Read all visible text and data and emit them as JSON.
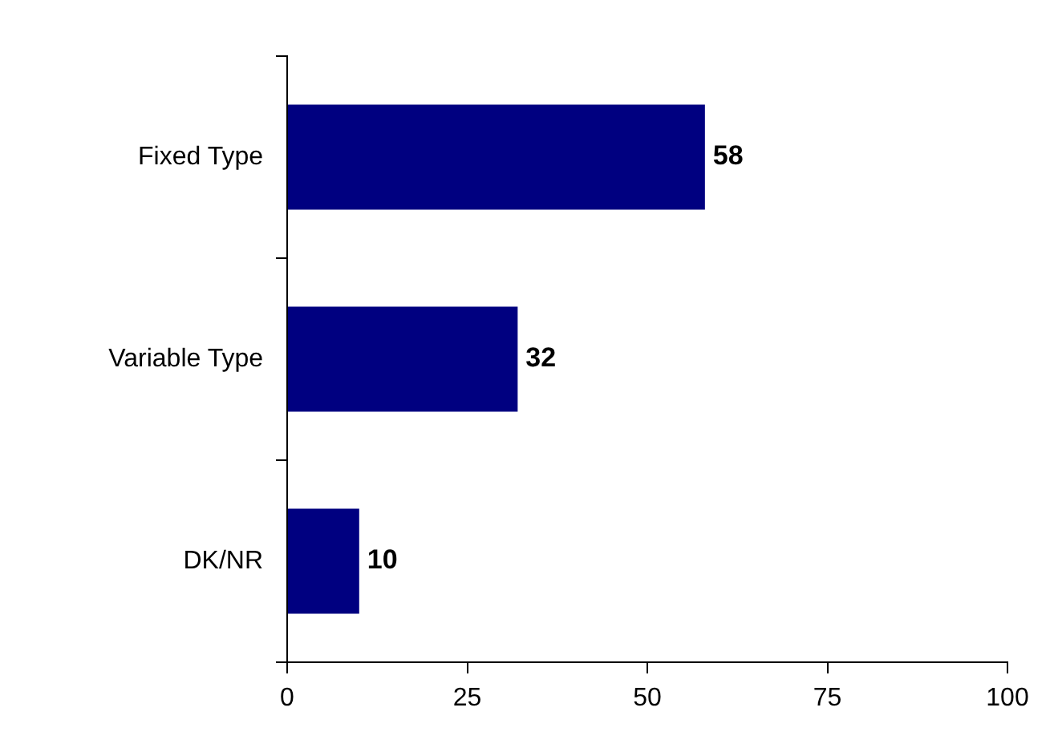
{
  "chart_data": {
    "type": "bar",
    "orientation": "horizontal",
    "categories": [
      "Fixed Type",
      "Variable Type",
      "DK/NR"
    ],
    "values": [
      58,
      32,
      10
    ],
    "color": "#000080",
    "xlim": [
      0,
      100
    ],
    "xticks": [
      0,
      25,
      50,
      75,
      100
    ],
    "grid": false,
    "legend": false,
    "data_labels": true
  }
}
